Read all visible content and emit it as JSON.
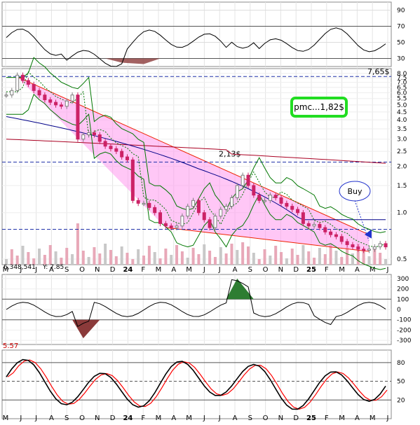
{
  "chart_data": {
    "type": "candlestick",
    "x_month_labels": [
      "M",
      "J",
      "J",
      "A",
      "S",
      "O",
      "N",
      "D",
      "24",
      "F",
      "M",
      "A",
      "M",
      "J",
      "J",
      "A",
      "S",
      "O",
      "N",
      "D",
      "25",
      "F",
      "M",
      "A",
      "M",
      "J"
    ],
    "panels": [
      {
        "name": "rsi",
        "yticks": [
          90,
          70,
          50,
          30
        ],
        "ylim": [
          20,
          100
        ]
      },
      {
        "name": "price",
        "scale": "log",
        "yticks": [
          "8.0",
          "7.5",
          "7.0",
          "6.5",
          "6.0",
          "5.5",
          "5.0",
          "4.5",
          "4.0",
          "3.5",
          "3.0",
          "2.5",
          "2.0",
          "1.5",
          "1.0",
          "0.5"
        ],
        "ylim": [
          0.46,
          8.6
        ]
      },
      {
        "name": "cci",
        "yticks": [
          300,
          200,
          100,
          0,
          -100,
          -200,
          -300
        ],
        "ylim": [
          -340,
          340
        ]
      },
      {
        "name": "stochastic",
        "yticks": [
          80,
          50,
          20
        ],
        "ylim": [
          -10,
          100
        ]
      }
    ],
    "volume_label": "6,348,541",
    "y_label": "Y: 7.85",
    "stoch_label": "5.57",
    "annotations": {
      "high_label": "7,65$",
      "mid_label": "2,13$",
      "buy_label": "Buy",
      "pmc_label": "pmc...1,82$",
      "high_level": 7.65,
      "mid_level": 2.13,
      "buy_level": 0.78
    },
    "price_close": [
      5.8,
      6.2,
      7.8,
      7.2,
      6.8,
      6.2,
      5.8,
      5.4,
      5.2,
      5.0,
      4.9,
      5.3,
      5.8,
      3.0,
      3.2,
      3.3,
      3.2,
      2.9,
      2.7,
      2.6,
      2.5,
      2.3,
      2.2,
      1.2,
      1.15,
      1.15,
      1.08,
      1.0,
      0.85,
      0.82,
      0.8,
      0.82,
      0.95,
      1.1,
      1.2,
      1.0,
      0.9,
      0.8,
      0.95,
      1.05,
      1.1,
      1.25,
      1.5,
      1.75,
      1.5,
      1.3,
      1.2,
      1.2,
      1.3,
      1.25,
      1.15,
      1.1,
      1.05,
      1.0,
      0.85,
      0.82,
      0.84,
      0.8,
      0.75,
      0.72,
      0.7,
      0.65,
      0.62,
      0.6,
      0.58,
      0.57,
      0.58,
      0.6,
      0.63,
      0.6
    ],
    "colors": {
      "up": "#7f7f7f",
      "down": "#cc2266",
      "channel_fill": "#ff99ee",
      "trend": "#ee2200",
      "ma_long": "#aa0022",
      "ma_mid": "#000088",
      "bollinger": "#007700",
      "stoch_k": "#000000",
      "stoch_d": "#ff0000",
      "cci_pos": "#2e7d32",
      "cci_neg": "#8b3a3a",
      "buy_circle": "#2233cc",
      "pmc_border": "#22dd22"
    }
  }
}
